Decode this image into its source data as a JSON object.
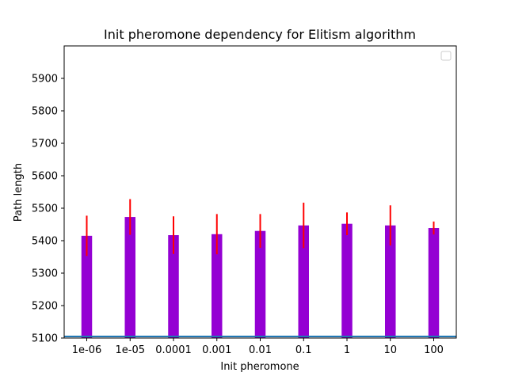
{
  "chart_data": {
    "type": "bar",
    "title": "Init pheromone dependency for Elitism algorithm",
    "xlabel": "Init pheromone",
    "ylabel": "Path length",
    "categories": [
      "1e-06",
      "1e-05",
      "0.0001",
      "0.001",
      "0.01",
      "0.1",
      "1",
      "10",
      "100"
    ],
    "values": [
      5415,
      5473,
      5417,
      5420,
      5430,
      5447,
      5452,
      5447,
      5439
    ],
    "error": [
      62,
      55,
      58,
      62,
      52,
      70,
      35,
      62,
      20
    ],
    "ylim": [
      5100,
      6000
    ],
    "yticks": [
      5100,
      5200,
      5300,
      5400,
      5500,
      5600,
      5700,
      5800,
      5900
    ],
    "baseline": 5105,
    "bar_color": "#9400d3",
    "error_color": "#ff0000",
    "baseline_color": "#1f77b4",
    "legend": {
      "placement": "top-right",
      "entries": []
    },
    "grid": false
  }
}
